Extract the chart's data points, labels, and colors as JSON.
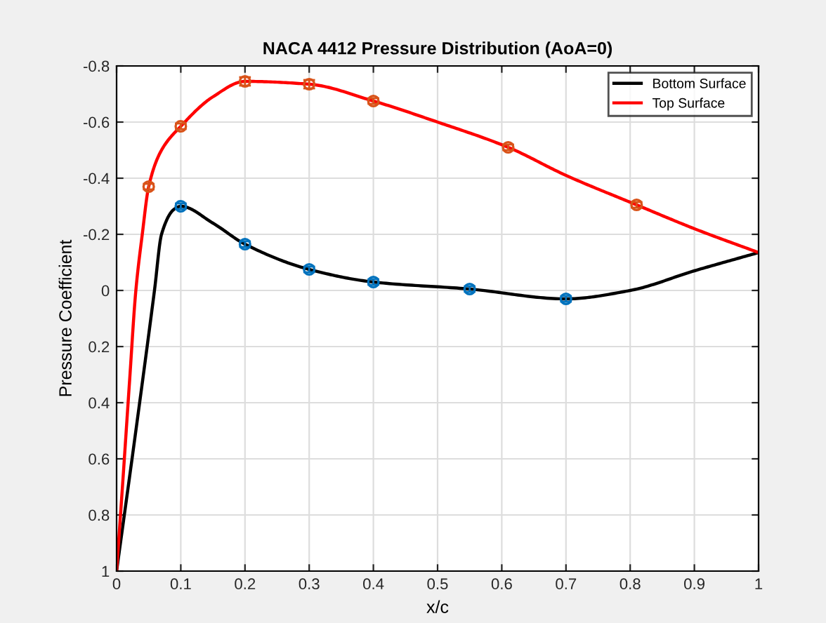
{
  "chart_data": {
    "type": "line",
    "title": "NACA 4412 Pressure Distribution (AoA=0)",
    "xlabel": "x/c",
    "ylabel": "Pressure Coefficient",
    "xlim": [
      0,
      1
    ],
    "ylim": [
      1,
      -0.8
    ],
    "xticks": [
      0,
      0.1,
      0.2,
      0.3,
      0.4,
      0.5,
      0.6,
      0.7,
      0.8,
      0.9,
      1
    ],
    "yticks": [
      -0.8,
      -0.6,
      -0.4,
      -0.2,
      0,
      0.2,
      0.4,
      0.6,
      0.8,
      1
    ],
    "grid": true,
    "legend": "top right",
    "series": [
      {
        "name": "Bottom Surface",
        "color": "#000000",
        "marker": "none",
        "x": [
          0,
          0.03,
          0.059,
          0.07,
          0.09,
          0.1,
          0.15,
          0.2,
          0.3,
          0.4,
          0.55,
          0.7,
          0.8,
          0.9,
          1
        ],
        "values": [
          1,
          0.5,
          0,
          -0.2,
          -0.29,
          -0.3,
          -0.24,
          -0.165,
          -0.075,
          -0.03,
          -0.005,
          0.03,
          0,
          -0.07,
          -0.135
        ]
      },
      {
        "name": "Top Surface",
        "color": "#ff0000",
        "marker": "none",
        "x": [
          0,
          0.01,
          0.02,
          0.03,
          0.04,
          0.05,
          0.07,
          0.1,
          0.15,
          0.2,
          0.3,
          0.4,
          0.5,
          0.61,
          0.7,
          0.81,
          0.9,
          1
        ],
        "values": [
          1,
          0.67,
          0.33,
          0,
          -0.2,
          -0.37,
          -0.5,
          -0.585,
          -0.69,
          -0.745,
          -0.735,
          -0.675,
          -0.6,
          -0.51,
          -0.41,
          -0.305,
          -0.22,
          -0.135
        ]
      },
      {
        "type": "scatter",
        "color": "#0072bd",
        "marker": "circle",
        "x": [
          0.1,
          0.2,
          0.3,
          0.4,
          0.55,
          0.7
        ],
        "values": [
          -0.3,
          -0.165,
          -0.075,
          -0.03,
          -0.005,
          0.03
        ],
        "errors": [
          0.01,
          0.01,
          0.01,
          0.01,
          0.01,
          0.01
        ]
      },
      {
        "type": "scatter",
        "color": "#d95319",
        "marker": "circle",
        "x": [
          0.05,
          0.1,
          0.2,
          0.3,
          0.4,
          0.61,
          0.81
        ],
        "values": [
          -0.37,
          -0.585,
          -0.745,
          -0.735,
          -0.675,
          -0.51,
          -0.305
        ],
        "errors": [
          0.01,
          0.01,
          0.015,
          0.015,
          0.01,
          0.01,
          0.01
        ]
      }
    ]
  }
}
